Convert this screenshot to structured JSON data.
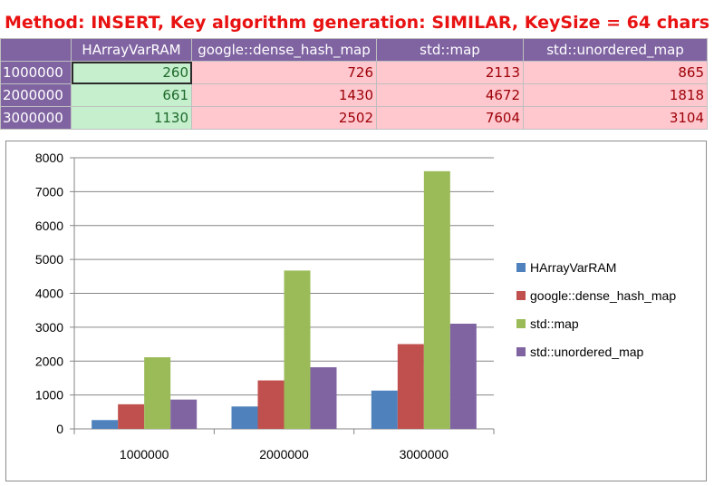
{
  "title": "Method: INSERT, Key algorithm generation: SIMILAR, KeySize = 64 chars",
  "table": {
    "columns": [
      "HArrayVarRAM",
      "google::dense_hash_map",
      "std::map",
      "std::unordered_map"
    ],
    "rows": [
      {
        "label": "1000000",
        "values": [
          "260",
          "726",
          "2113",
          "865"
        ]
      },
      {
        "label": "2000000",
        "values": [
          "661",
          "1430",
          "4672",
          "1818"
        ]
      },
      {
        "label": "3000000",
        "values": [
          "1130",
          "2502",
          "7604",
          "3104"
        ]
      }
    ]
  },
  "colors": {
    "header_bg": "#8064a2",
    "good_cell_bg": "#c6efce",
    "bad_cell_bg": "#ffc7ce",
    "title_color": "#e81212"
  },
  "chart_data": {
    "type": "bar",
    "categories": [
      "1000000",
      "2000000",
      "3000000"
    ],
    "series": [
      {
        "name": "HArrayVarRAM",
        "color": "#4f81bd",
        "values": [
          260,
          661,
          1130
        ]
      },
      {
        "name": "google::dense_hash_map",
        "color": "#c0504d",
        "values": [
          726,
          1430,
          2502
        ]
      },
      {
        "name": "std::map",
        "color": "#9bbb59",
        "values": [
          2113,
          4672,
          7604
        ]
      },
      {
        "name": "std::unordered_map",
        "color": "#8064a2",
        "values": [
          865,
          1818,
          3104
        ]
      }
    ],
    "ylim": [
      0,
      8000
    ],
    "yticks": [
      "0",
      "1000",
      "2000",
      "3000",
      "4000",
      "5000",
      "6000",
      "7000",
      "8000"
    ],
    "grid": true,
    "legend": "right"
  }
}
